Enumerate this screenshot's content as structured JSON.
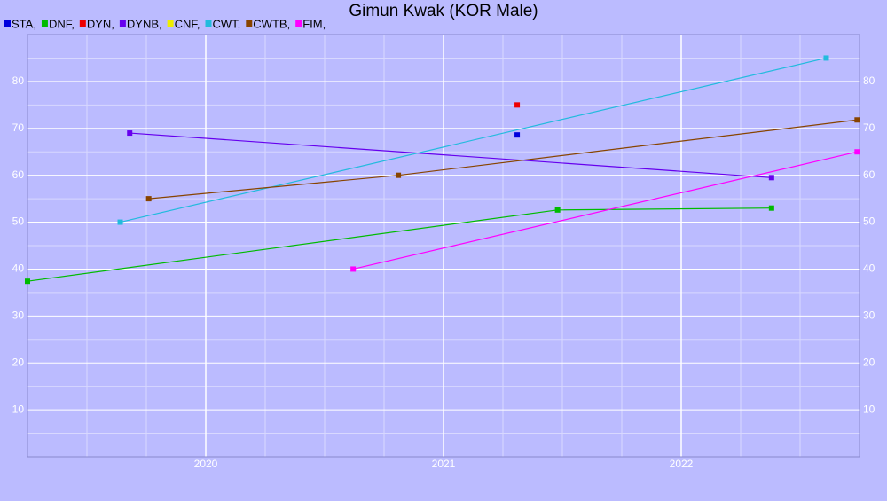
{
  "chart_data": {
    "type": "line",
    "title": "Gimun Kwak (KOR Male)",
    "xlim": [
      2019.25,
      2022.75
    ],
    "xticks": [
      2020,
      2021,
      2022
    ],
    "ylim": [
      0,
      90
    ],
    "yticks": [
      10,
      20,
      30,
      40,
      50,
      60,
      70,
      80
    ],
    "grid": true,
    "legend": "top-left",
    "series": [
      {
        "name": "STA,",
        "color": "#0000dd",
        "x": [
          2021.31
        ],
        "values": [
          68.6
        ]
      },
      {
        "name": "DNF,",
        "color": "#00bb00",
        "x": [
          2019.25,
          2021.48,
          2022.38
        ],
        "values": [
          37.4,
          52.6,
          53.0
        ]
      },
      {
        "name": "DYN,",
        "color": "#ee0000",
        "x": [
          2021.31
        ],
        "values": [
          75
        ]
      },
      {
        "name": "DYNB,",
        "color": "#6600ee",
        "x": [
          2019.68,
          2022.38
        ],
        "values": [
          69.0,
          59.5
        ]
      },
      {
        "name": "CNF,",
        "color": "#eeee00",
        "x": [],
        "values": []
      },
      {
        "name": "CWT,",
        "color": "#22bbdd",
        "x": [
          2019.64,
          2022.61
        ],
        "values": [
          50,
          85
        ]
      },
      {
        "name": "CWTB,",
        "color": "#884400",
        "x": [
          2019.76,
          2020.81,
          2022.74
        ],
        "values": [
          55,
          60,
          71.8
        ]
      },
      {
        "name": "FIM,",
        "color": "#ff00ff",
        "x": [
          2020.62,
          2022.74
        ],
        "values": [
          40,
          65
        ]
      }
    ]
  }
}
